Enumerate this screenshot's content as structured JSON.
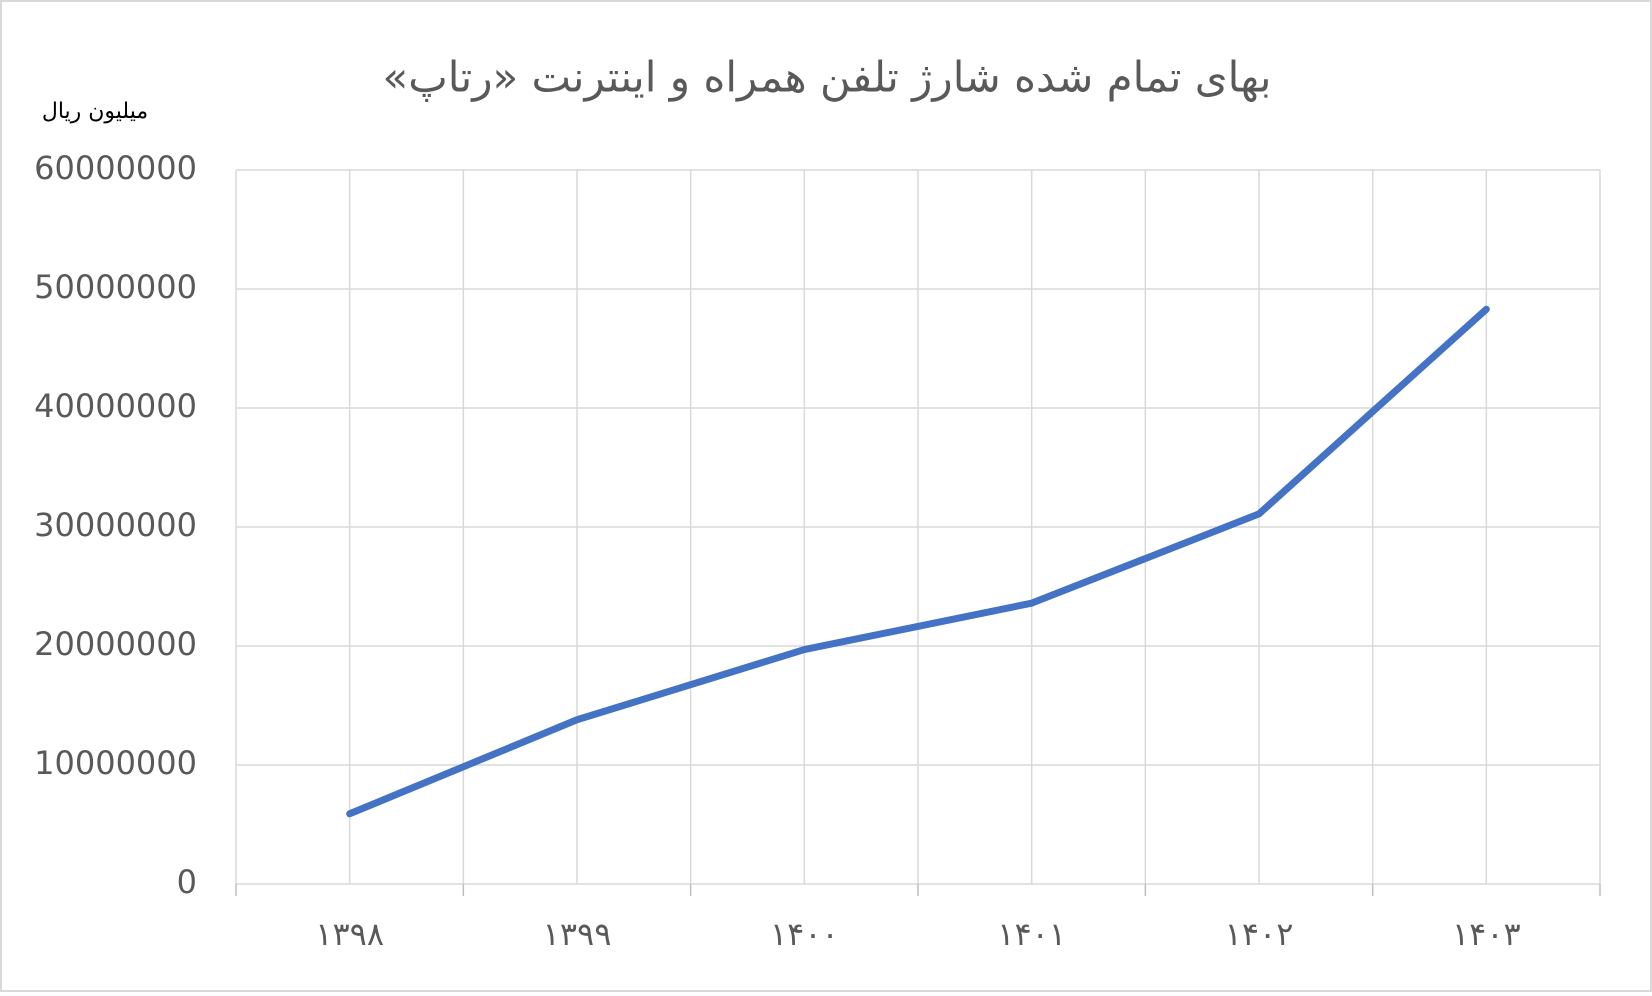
{
  "chart_data": {
    "type": "line",
    "title": "بهای تمام شده شارژ تلفن همراه و اینترنت «رتاپ»",
    "y_label": "میلیون ریال",
    "categories": [
      "۱۳۹۸",
      "۱۳۹۹",
      "۱۴۰۰",
      "۱۴۰۱",
      "۱۴۰۲",
      "۱۴۰۳"
    ],
    "series": [
      {
        "name": "بهای تمام شده",
        "color": "#4472c4",
        "values": [
          5900000,
          13800000,
          19700000,
          23600000,
          31100000,
          48300000
        ]
      }
    ],
    "ylim": [
      0,
      60000000
    ],
    "yticks": [
      0,
      10000000,
      20000000,
      30000000,
      40000000,
      50000000,
      60000000
    ],
    "grid": true
  }
}
